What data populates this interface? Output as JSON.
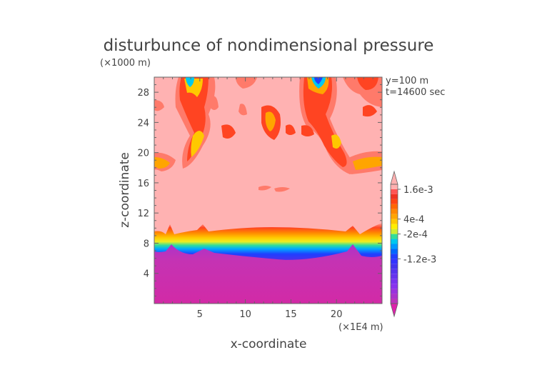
{
  "chart_data": {
    "type": "heatmap",
    "title": "disturbunce of nondimensional pressure",
    "xlabel": "x-coordinate",
    "ylabel": "z-coordinate",
    "x_unit": "(×1E4 m)",
    "y_unit": "(×1000 m)",
    "annotations": [
      "y=100 m",
      "t=14600 sec"
    ],
    "xlim": [
      0,
      25
    ],
    "ylim": [
      0,
      30
    ],
    "x_ticks": [
      5,
      10,
      15,
      20
    ],
    "y_ticks": [
      4,
      8,
      12,
      16,
      20,
      24,
      28
    ],
    "colorbar": {
      "labels": [
        {
          "text": "1.6e-3",
          "value": 0.0016
        },
        {
          "text": "4e-4",
          "value": 0.0004
        },
        {
          "text": "-2e-4",
          "value": -0.0002
        },
        {
          "text": "-1.2e-3",
          "value": -0.0012
        }
      ],
      "levels": [
        -0.003,
        -0.0028,
        -0.0026,
        -0.0024,
        -0.0022,
        -0.002,
        -0.0018,
        -0.0016,
        -0.0014,
        -0.0012,
        -0.001,
        -0.0008,
        -0.0006,
        -0.0004,
        -0.0002,
        0.0,
        0.0002,
        0.0004,
        0.0006,
        0.0008,
        0.001,
        0.0012,
        0.0014,
        0.0016,
        0.0018
      ],
      "colors": [
        "#cc33aa",
        "#bb33bb",
        "#aa33cc",
        "#9933dd",
        "#8833ee",
        "#7733ee",
        "#6633ee",
        "#5533ee",
        "#4433ee",
        "#3333ff",
        "#1f3fff",
        "#0066ff",
        "#0099ff",
        "#00c8ee",
        "#33dd99",
        "#ccee33",
        "#ffee00",
        "#ffc800",
        "#ffa500",
        "#ff8800",
        "#ff6600",
        "#ff4411",
        "#ee3322",
        "#ff5555",
        "#ffb0b0"
      ],
      "bottom_color": "#dd22aa",
      "top_color": "#ffb0b0"
    }
  }
}
